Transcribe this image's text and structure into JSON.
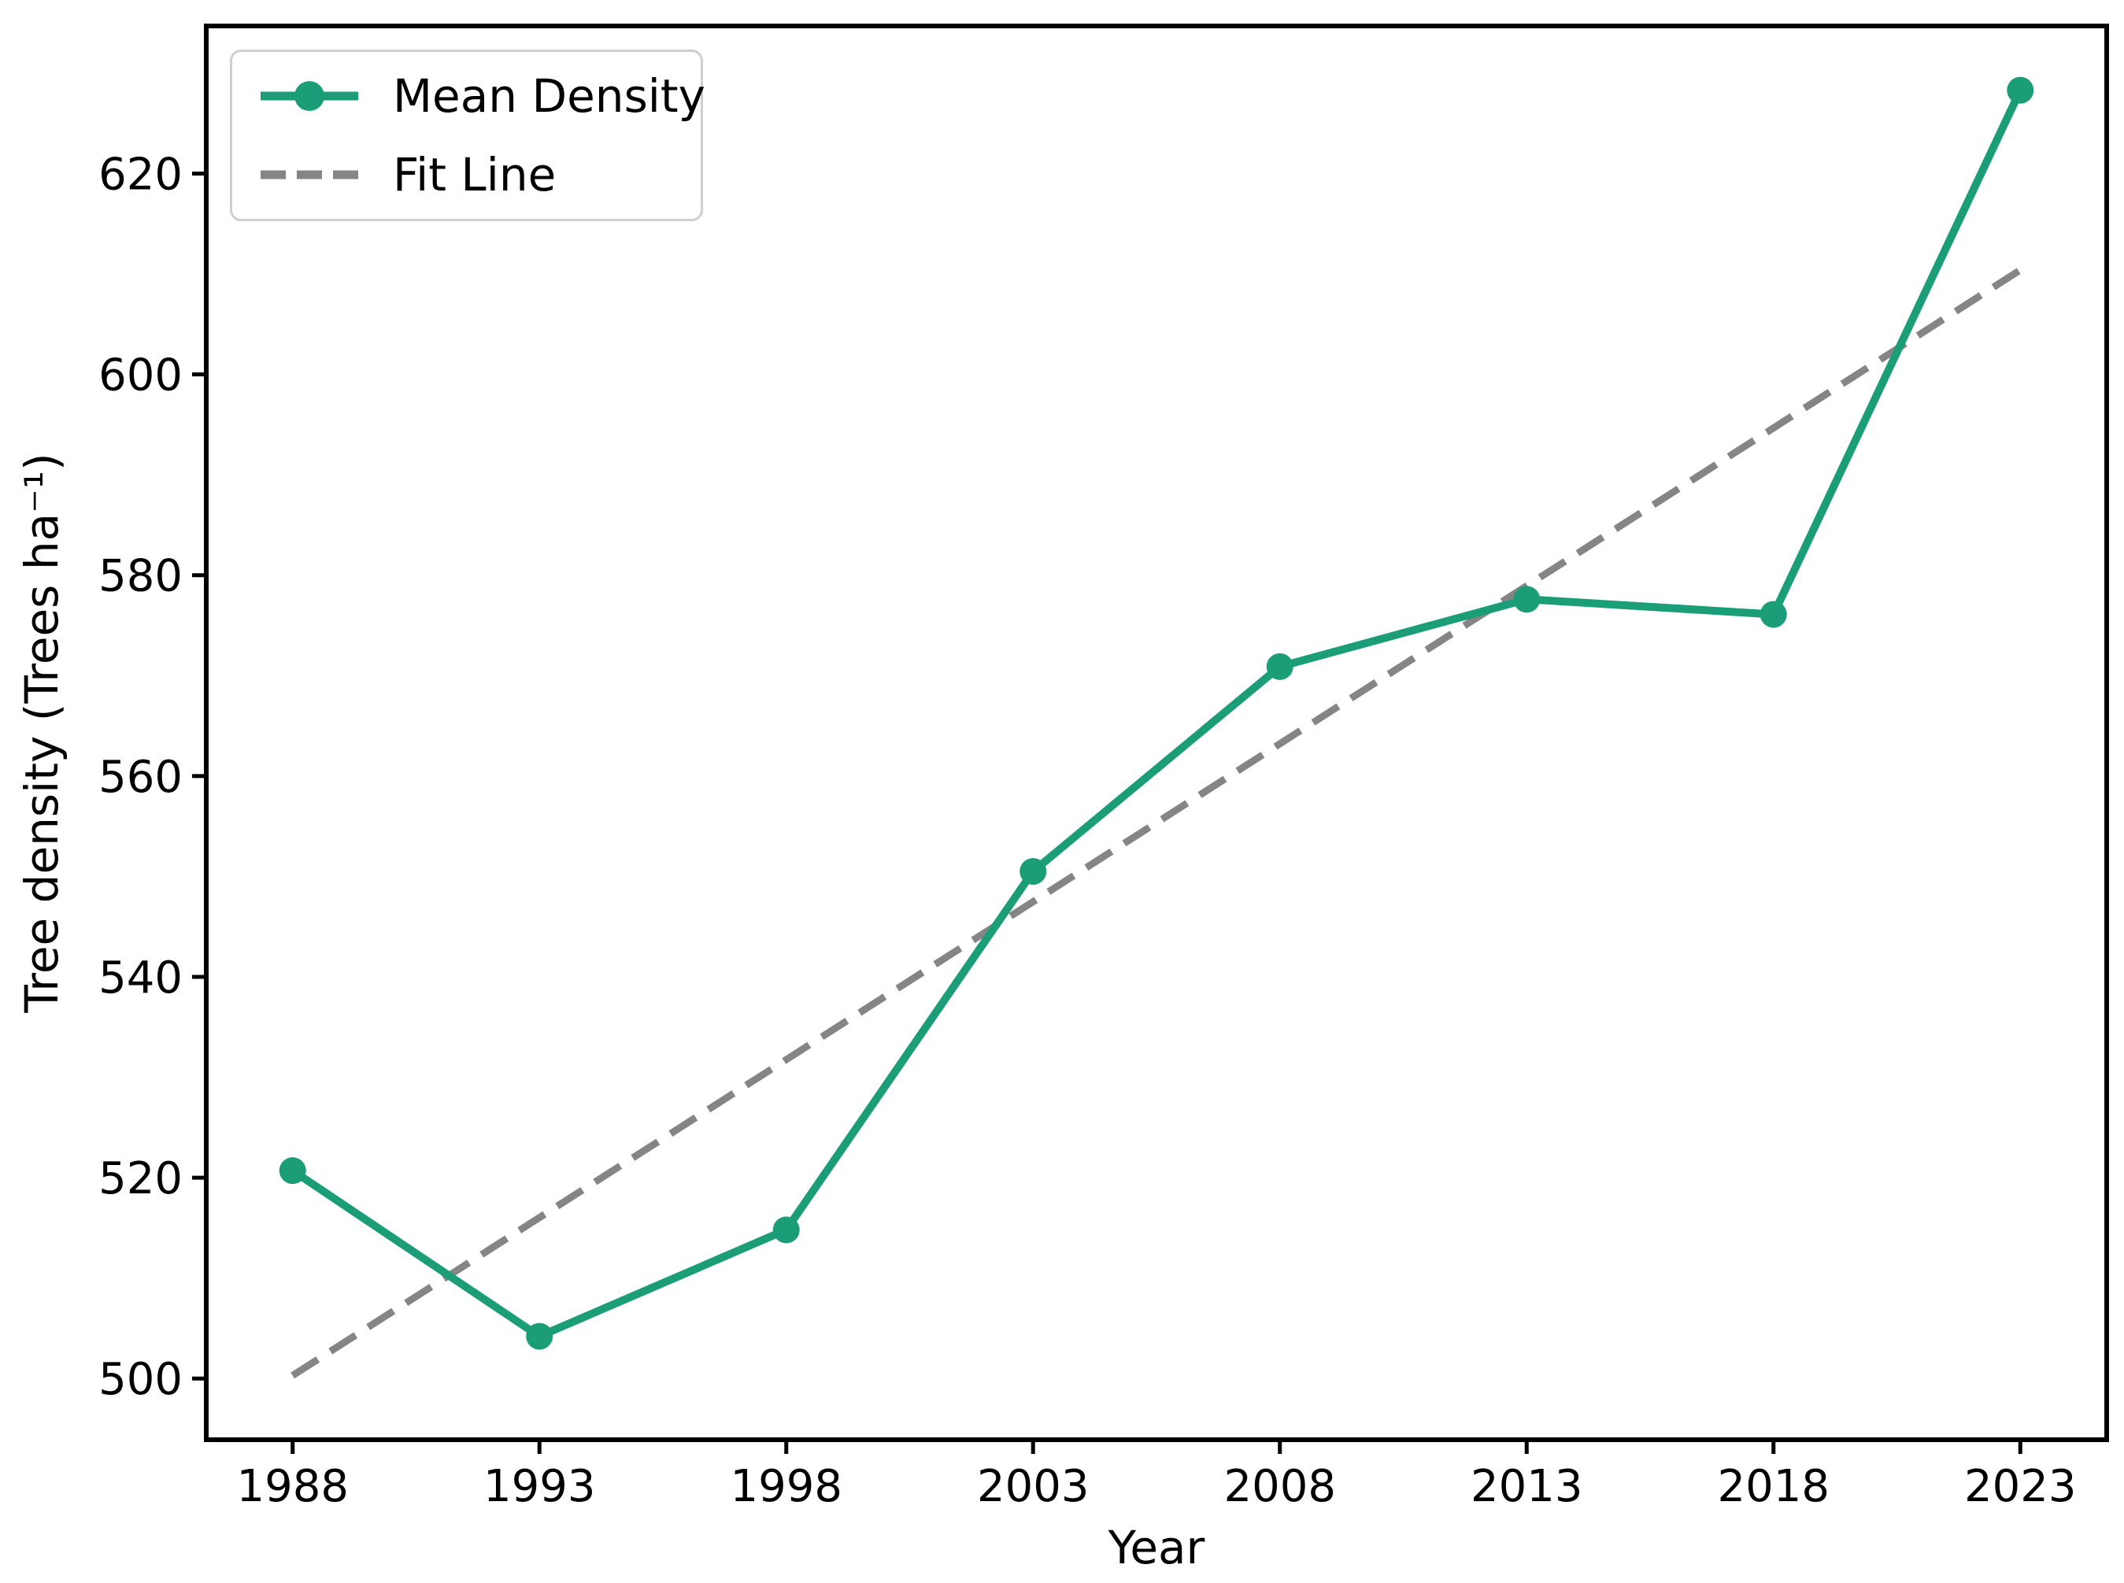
{
  "chart_data": {
    "type": "line",
    "title": "",
    "xlabel": "Year",
    "ylabel": "Tree density (Trees ha⁻¹)",
    "x": [
      1988,
      1993,
      1998,
      2003,
      2008,
      2013,
      2018,
      2023
    ],
    "xticks": [
      1988,
      1993,
      1998,
      2003,
      2008,
      2013,
      2018,
      2023
    ],
    "yticks": [
      500,
      520,
      540,
      560,
      580,
      600,
      620
    ],
    "xlim": [
      1986.25,
      2024.75
    ],
    "ylim": [
      493.9,
      634.7
    ],
    "grid": false,
    "legend_position": "upper left",
    "series": [
      {
        "name": "Mean Density",
        "color": "#1b9e77",
        "line": "solid",
        "marker": "circle",
        "values": [
          520.7,
          504.2,
          514.8,
          550.5,
          570.9,
          577.6,
          576.1,
          628.3
        ]
      },
      {
        "name": "Fit Line",
        "color": "#858585",
        "line": "dashed",
        "marker": "none",
        "x": [
          1988,
          2023
        ],
        "values": [
          500.3,
          610.4
        ]
      }
    ]
  }
}
